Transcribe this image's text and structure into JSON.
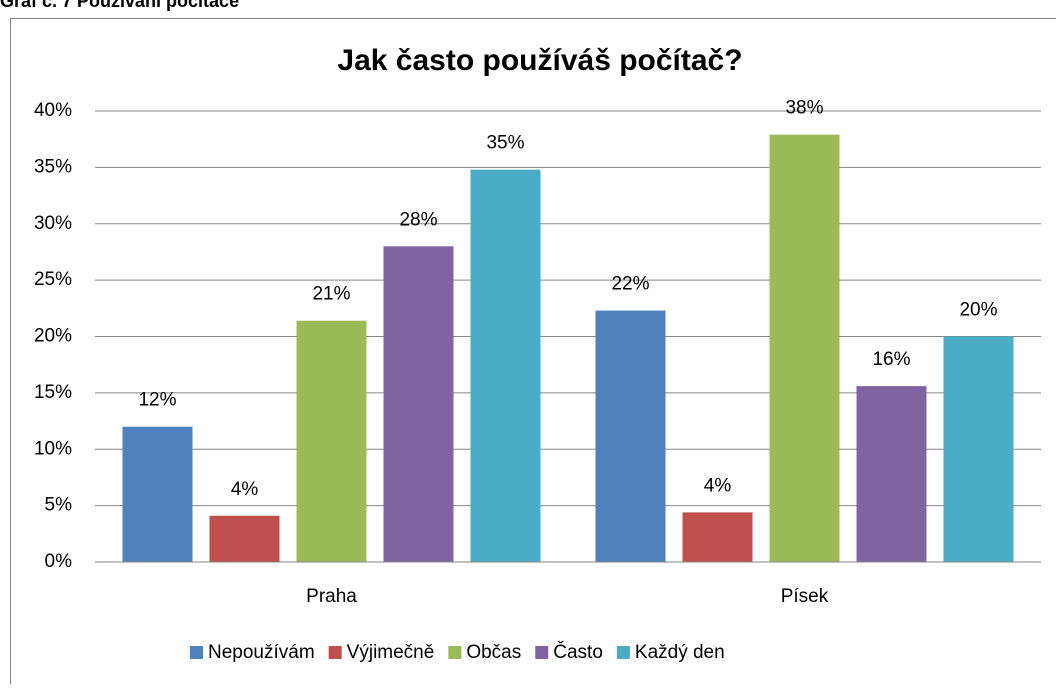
{
  "caption": "Graf č. 7 Používání počítače",
  "chart_data": {
    "type": "bar",
    "title": "Jak často používáš počítač?",
    "categories": [
      "Praha",
      "Písek"
    ],
    "series": [
      {
        "name": "Nepoužívám",
        "color": "#4f81bd",
        "values": [
          12,
          22.3
        ],
        "value_labels": [
          "12%",
          "22%"
        ]
      },
      {
        "name": "Výjimečně",
        "color": "#c0504d",
        "values": [
          4.1,
          4.4
        ],
        "value_labels": [
          "4%",
          "4%"
        ]
      },
      {
        "name": "Občas",
        "color": "#9bbb59",
        "values": [
          21.4,
          37.9
        ],
        "value_labels": [
          "21%",
          "38%"
        ]
      },
      {
        "name": "Často",
        "color": "#8064a2",
        "values": [
          28,
          15.6
        ],
        "value_labels": [
          "28%",
          "16%"
        ]
      },
      {
        "name": "Každý den",
        "color": "#4bacc6",
        "values": [
          34.8,
          20
        ],
        "value_labels": [
          "35%",
          "20%"
        ]
      }
    ],
    "ylim": [
      0,
      40
    ],
    "yticks": [
      {
        "value": 0,
        "label": "0%"
      },
      {
        "value": 5,
        "label": "5%"
      },
      {
        "value": 10,
        "label": "10%"
      },
      {
        "value": 15,
        "label": "15%"
      },
      {
        "value": 20,
        "label": "20%"
      },
      {
        "value": 25,
        "label": "25%"
      },
      {
        "value": 30,
        "label": "30%"
      },
      {
        "value": 35,
        "label": "35%"
      },
      {
        "value": 40,
        "label": "40%"
      }
    ],
    "grid": true,
    "legend": "bottom"
  }
}
